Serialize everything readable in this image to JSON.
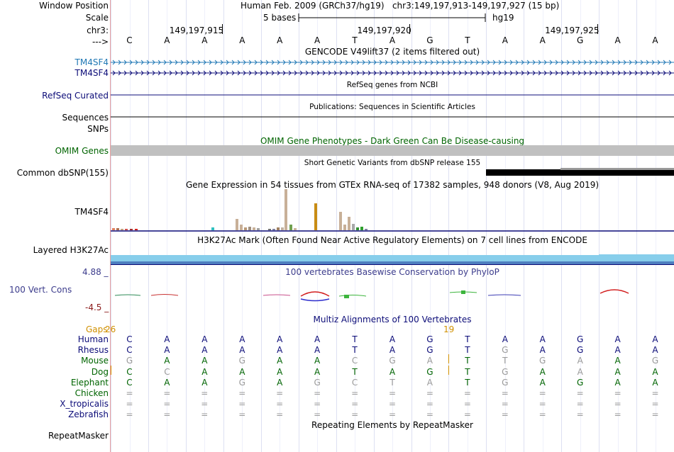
{
  "header": {
    "window_position_label": "Window Position",
    "window_position_value": "Human Feb. 2009 (GRCh37/hg19)   chr3:149,197,913-149,197,927 (15 bp)",
    "scale_label": "Scale",
    "scale_value": "5 bases",
    "scale_assembly": "hg19",
    "chrom_label": "chr3:",
    "ticks": [
      "149,197,915",
      "149,197,920",
      "149,197,925"
    ],
    "strand_label": "--->",
    "sequence": [
      "C",
      "A",
      "A",
      "A",
      "A",
      "A",
      "T",
      "A",
      "G",
      "T",
      "A",
      "A",
      "G",
      "A",
      "A"
    ]
  },
  "tracks": {
    "gencode": {
      "title": "GENCODE V49lift37 (2 items filtered out)",
      "items": [
        {
          "label": "TM4SF4",
          "color": "#1f77b4"
        },
        {
          "label": "TM4SF4",
          "color": "#0c0c78"
        }
      ]
    },
    "refseq": {
      "label": "RefSeq Curated",
      "title": "RefSeq genes from NCBI",
      "color": "#0c0c78"
    },
    "publications": {
      "label": "Sequences",
      "title": "Publications: Sequences in Scientific Articles"
    },
    "snps": {
      "label": "SNPs"
    },
    "omim": {
      "label": "OMIM Genes",
      "title": "OMIM Gene Phenotypes - Dark Green Can Be Disease-causing",
      "color": "#006400"
    },
    "dbsnp": {
      "label": "Common dbSNP(155)",
      "title": "Short Genetic Variants from dbSNP release 155"
    },
    "gtex": {
      "title": "Gene Expression in 54 tissues from GTEx RNA-seq of 17382 samples, 948 donors (V8, Aug 2019)",
      "label": "TM4SF4"
    },
    "h3k27ac": {
      "label": "Layered H3K27Ac",
      "title": "H3K27Ac Mark (Often Found Near Active Regulatory Elements) on 7 cell lines from ENCODE"
    },
    "phylop": {
      "label": "100 Vert. Cons",
      "title": "100 vertebrates Basewise Conservation by PhyloP",
      "max": "4.88 _",
      "min": "-4.5 _",
      "color": "#3c3c8c"
    },
    "multiz": {
      "title": "Multiz Alignments of 100 Vertebrates",
      "gaps_label": "Gaps",
      "gap_numbers": [
        "26",
        "19"
      ],
      "species": [
        {
          "name": "Human",
          "color": "#0c0c78",
          "seq": [
            "C",
            "A",
            "A",
            "A",
            "A",
            "A",
            "T",
            "A",
            "G",
            "T",
            "A",
            "A",
            "G",
            "A",
            "A"
          ],
          "dim": [
            0,
            0,
            0,
            0,
            0,
            0,
            0,
            0,
            0,
            0,
            0,
            0,
            0,
            0,
            0
          ]
        },
        {
          "name": "Rhesus",
          "color": "#0c0c78",
          "seq": [
            "C",
            "A",
            "A",
            "A",
            "A",
            "A",
            "T",
            "A",
            "G",
            "T",
            "G",
            "A",
            "G",
            "A",
            "A"
          ],
          "dim": [
            0,
            0,
            0,
            0,
            0,
            0,
            0,
            0,
            0,
            0,
            1,
            0,
            0,
            0,
            0
          ]
        },
        {
          "name": "Mouse",
          "color": "#006400",
          "seq": [
            "G",
            "A",
            "A",
            "G",
            "A",
            "A",
            "C",
            "G",
            "A",
            "T",
            "T",
            "G",
            "A",
            "A",
            "G"
          ],
          "dim": [
            1,
            0,
            0,
            1,
            0,
            0,
            1,
            1,
            1,
            0,
            1,
            1,
            1,
            0,
            1
          ]
        },
        {
          "name": "Dog",
          "color": "#006400",
          "seq": [
            "C",
            "C",
            "A",
            "A",
            "A",
            "A",
            "T",
            "A",
            "G",
            "T",
            "G",
            "A",
            "A",
            "A",
            "A"
          ],
          "dim": [
            0,
            1,
            0,
            0,
            0,
            0,
            0,
            0,
            0,
            0,
            1,
            0,
            1,
            0,
            0
          ]
        },
        {
          "name": "Elephant",
          "color": "#006400",
          "seq": [
            "C",
            "A",
            "A",
            "G",
            "A",
            "G",
            "C",
            "T",
            "A",
            "T",
            "G",
            "A",
            "G",
            "A",
            "A"
          ],
          "dim": [
            0,
            0,
            0,
            1,
            0,
            1,
            1,
            1,
            1,
            0,
            1,
            0,
            0,
            0,
            0
          ]
        },
        {
          "name": "Chicken",
          "color": "#006400",
          "seq": [
            "=",
            "=",
            "=",
            "=",
            "=",
            "=",
            "=",
            "=",
            "=",
            "=",
            "=",
            "=",
            "=",
            "=",
            "="
          ],
          "dim": [
            1,
            1,
            1,
            1,
            1,
            1,
            1,
            1,
            1,
            1,
            1,
            1,
            1,
            1,
            1
          ]
        },
        {
          "name": "X_tropicalis",
          "color": "#0c0c78",
          "seq": [
            "=",
            "=",
            "=",
            "=",
            "=",
            "=",
            "=",
            "=",
            "=",
            "=",
            "=",
            "=",
            "=",
            "=",
            "="
          ],
          "dim": [
            1,
            1,
            1,
            1,
            1,
            1,
            1,
            1,
            1,
            1,
            1,
            1,
            1,
            1,
            1
          ]
        },
        {
          "name": "Zebrafish",
          "color": "#0c0c78",
          "seq": [
            "=",
            "=",
            "=",
            "=",
            "=",
            "=",
            "=",
            "=",
            "=",
            "=",
            "=",
            "=",
            "=",
            "=",
            "="
          ],
          "dim": [
            1,
            1,
            1,
            1,
            1,
            1,
            1,
            1,
            1,
            1,
            1,
            1,
            1,
            1,
            1
          ]
        }
      ]
    },
    "repeatmasker": {
      "label": "RepeatMasker",
      "title": "Repeating Elements by RepeatMasker"
    }
  }
}
